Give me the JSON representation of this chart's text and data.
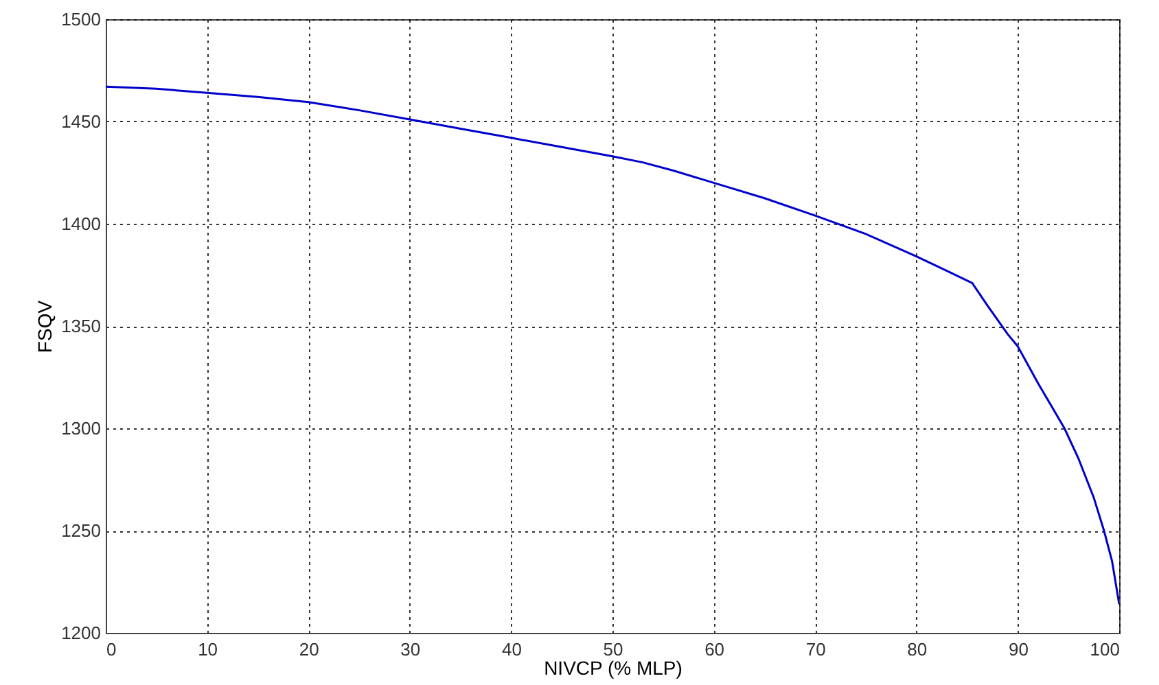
{
  "chart_data": {
    "type": "line",
    "xlabel": "NIVCP (% MLP)",
    "ylabel": "FSQV",
    "x": [
      0,
      5,
      10,
      15,
      20,
      25,
      30,
      35,
      40,
      45,
      50,
      53,
      56,
      60,
      65,
      70,
      75,
      80,
      83,
      85.5,
      87,
      89,
      90,
      92,
      94.6,
      96,
      97.5,
      98.5,
      99.3,
      100
    ],
    "series": [
      {
        "color": "#0000cc",
        "values": [
          1467,
          1466,
          1464,
          1462,
          1459.5,
          1455.5,
          1451,
          1446.5,
          1442,
          1437.5,
          1433,
          1430,
          1426,
          1420,
          1412.5,
          1404,
          1395,
          1384,
          1377,
          1371,
          1360,
          1346,
          1340,
          1322,
          1300,
          1285,
          1266,
          1250,
          1235,
          1214
        ]
      }
    ],
    "xlim": [
      0,
      100
    ],
    "xticks": [
      0,
      10,
      20,
      30,
      40,
      50,
      60,
      70,
      80,
      90,
      100
    ],
    "ylim": [
      1200,
      1500
    ],
    "yticks": [
      1200,
      1250,
      1300,
      1350,
      1400,
      1450,
      1500
    ],
    "grid": true,
    "line_style": "solid",
    "marker": "none"
  }
}
